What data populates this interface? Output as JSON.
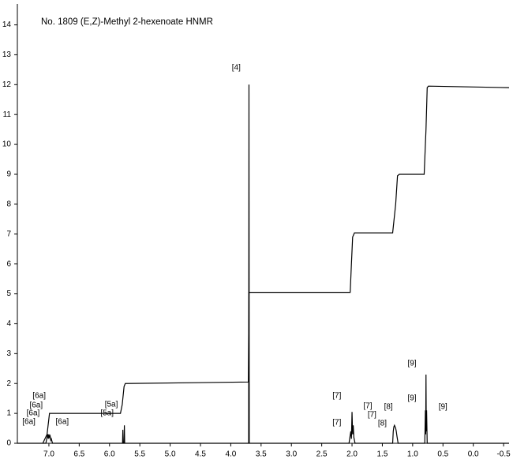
{
  "chart_data": {
    "type": "line",
    "title": "No. 1809    (E,Z)-Methyl 2-hexenoate HNMR",
    "xlim": [
      7.52,
      -0.59
    ],
    "ylim": [
      0,
      14.7
    ],
    "xticks": [
      {
        "value": 7,
        "label": "7.0"
      },
      6.5,
      {
        "value": 6,
        "label": "6.0"
      },
      5.5,
      {
        "value": 5,
        "label": "5.0"
      },
      4.5,
      {
        "value": 4,
        "label": "4.0"
      },
      3.5,
      {
        "value": 3,
        "label": "3.0"
      },
      2.5,
      {
        "value": 2,
        "label": "2.0"
      },
      1.5,
      {
        "value": 1,
        "label": "1.0"
      },
      0.5,
      {
        "value": 0,
        "label": "0.0"
      },
      -0.5
    ],
    "yticks": [
      0,
      1,
      2,
      3,
      4,
      5,
      6,
      7,
      8,
      9,
      10,
      11,
      12,
      13,
      14
    ],
    "series": [
      {
        "color": "#000000",
        "x": [
          7.52,
          7.05,
          7.03,
          7.02,
          7.01,
          7.0,
          6.99,
          6.98,
          6.97,
          6.96,
          6.94,
          5.8,
          5.785,
          5.78,
          5.775,
          5.76,
          5.755,
          5.75,
          3.72,
          3.705,
          3.7,
          3.695,
          2.05,
          2.02,
          2.01,
          2.0,
          1.99,
          1.98,
          1.97,
          1.95,
          1.33,
          1.32,
          1.31,
          1.3,
          1.29,
          1.28,
          1.27,
          1.26,
          1.24,
          0.8,
          0.79,
          0.785,
          0.78,
          0.775,
          0.77,
          0.76,
          -0.59
        ],
        "values": [
          0,
          0,
          0.2,
          0.3,
          0.15,
          0.3,
          0.2,
          0.25,
          0.1,
          0.15,
          0,
          0,
          0,
          0.45,
          0,
          0,
          0.6,
          0,
          0,
          0,
          12,
          0,
          0,
          0.4,
          0.15,
          1.05,
          0.3,
          0.6,
          0.2,
          0,
          0,
          0.4,
          0.55,
          0.6,
          0.55,
          0.5,
          0.4,
          0.25,
          0,
          0,
          1.1,
          0.3,
          2.3,
          0.4,
          1.1,
          0,
          0
        ]
      },
      {
        "color": "#000000",
        "x": [
          7.1,
          7.03,
          6.99,
          5.82,
          5.79,
          5.76,
          5.74,
          3.71,
          3.7,
          2.03,
          2.01,
          1.99,
          1.96,
          1.33,
          1.28,
          1.25,
          1.22,
          0.81,
          0.78,
          0.76,
          0.74,
          -0.59
        ],
        "values": [
          0,
          0.3,
          1.0,
          1.0,
          1.3,
          1.9,
          2.0,
          2.05,
          5.05,
          5.05,
          6.0,
          6.9,
          7.04,
          7.04,
          8.0,
          8.95,
          9.0,
          9.0,
          10.5,
          11.9,
          11.95,
          11.9
        ]
      }
    ],
    "annotations": [
      {
        "text": "[6a]",
        "x": 7.16,
        "y": 1.59
      },
      {
        "text": "[6a]",
        "x": 7.21,
        "y": 1.27
      },
      {
        "text": "[6a]",
        "x": 7.26,
        "y": 1.0
      },
      {
        "text": "[6a]",
        "x": 7.33,
        "y": 0.71
      },
      {
        "text": "[6a]",
        "x": 6.78,
        "y": 0.71
      },
      {
        "text": "[5a]",
        "x": 5.97,
        "y": 1.3
      },
      {
        "text": "[5a]",
        "x": 6.04,
        "y": 1.0
      },
      {
        "text": "[4]",
        "x": 3.91,
        "y": 12.57
      },
      {
        "text": "[7]",
        "x": 2.25,
        "y": 1.59
      },
      {
        "text": "[7]",
        "x": 1.74,
        "y": 1.24
      },
      {
        "text": "[7]",
        "x": 1.67,
        "y": 0.95
      },
      {
        "text": "[7]",
        "x": 2.25,
        "y": 0.69
      },
      {
        "text": "[8]",
        "x": 1.4,
        "y": 1.22
      },
      {
        "text": "[8]",
        "x": 1.5,
        "y": 0.66
      },
      {
        "text": "[9]",
        "x": 1.01,
        "y": 2.67
      },
      {
        "text": "[9]",
        "x": 1.01,
        "y": 1.51
      },
      {
        "text": "[9]",
        "x": 0.5,
        "y": 1.22
      }
    ]
  }
}
